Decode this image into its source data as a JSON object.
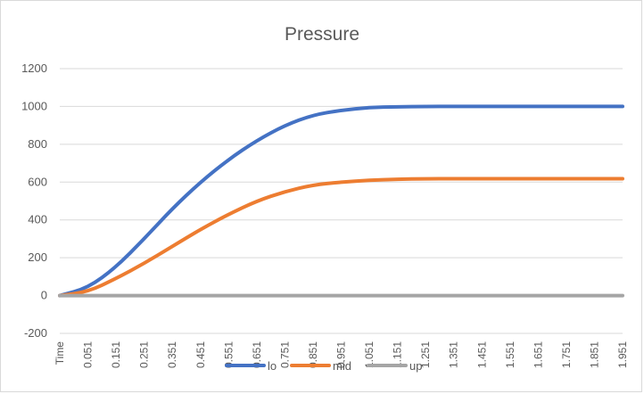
{
  "chart_data": {
    "type": "line",
    "title": "Pressure",
    "xlabel": "",
    "ylabel": "",
    "ylim": [
      -200,
      1200
    ],
    "yticks": [
      1200,
      1000,
      800,
      600,
      400,
      200,
      0,
      -200
    ],
    "grid": true,
    "legend_position": "bottom",
    "categories": [
      "Time",
      "0.051",
      "0.151",
      "0.251",
      "0.351",
      "0.451",
      "0.551",
      "0.651",
      "0.751",
      "0.851",
      "0.951",
      "1.051",
      "1.151",
      "1.251",
      "1.351",
      "1.451",
      "1.551",
      "1.651",
      "1.751",
      "1.851",
      "1.951"
    ],
    "series": [
      {
        "name": "lo",
        "color": "#4472C4",
        "values": [
          0,
          40,
          150,
          300,
          460,
          600,
          720,
          820,
          900,
          955,
          980,
          995,
          998,
          1000,
          1000,
          1000,
          1000,
          1000,
          1000,
          1000,
          1000
        ]
      },
      {
        "name": "mid",
        "color": "#ED7D31",
        "values": [
          0,
          20,
          90,
          170,
          260,
          350,
          430,
          500,
          550,
          585,
          600,
          610,
          615,
          618,
          618,
          618,
          618,
          618,
          618,
          618,
          618
        ]
      },
      {
        "name": "up",
        "color": "#A5A5A5",
        "values": [
          0,
          0,
          0,
          0,
          0,
          0,
          0,
          0,
          0,
          0,
          0,
          0,
          0,
          0,
          0,
          0,
          0,
          0,
          0,
          0,
          0
        ]
      }
    ]
  }
}
